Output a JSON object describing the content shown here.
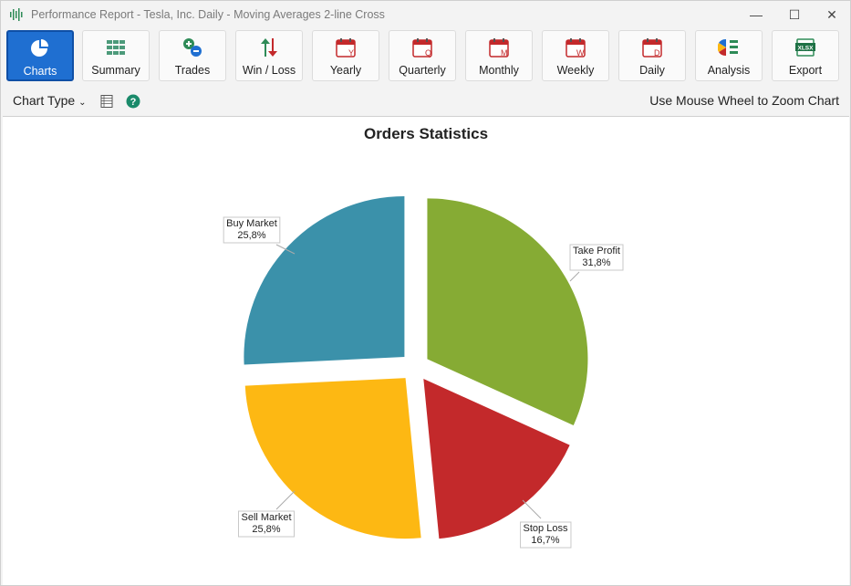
{
  "window": {
    "title": "Performance Report - Tesla, Inc. Daily - Moving Averages 2-line Cross",
    "controls": {
      "minimize": "—",
      "maximize": "☐",
      "close": "✕"
    }
  },
  "toolbar": {
    "buttons": [
      {
        "label": "Charts",
        "icon": "pie-chart-icon",
        "active": true
      },
      {
        "label": "Summary",
        "icon": "grid-icon"
      },
      {
        "label": "Trades",
        "icon": "plus-minus-icon"
      },
      {
        "label": "Win / Loss",
        "icon": "up-down-arrows-icon"
      },
      {
        "label": "Yearly",
        "icon": "calendar-y-icon",
        "letter": "Y"
      },
      {
        "label": "Quarterly",
        "icon": "calendar-q-icon",
        "letter": "Q"
      },
      {
        "label": "Monthly",
        "icon": "calendar-m-icon",
        "letter": "M"
      },
      {
        "label": "Weekly",
        "icon": "calendar-w-icon",
        "letter": "W"
      },
      {
        "label": "Daily",
        "icon": "calendar-d-icon",
        "letter": "D"
      },
      {
        "label": "Analysis",
        "icon": "analysis-icon"
      },
      {
        "label": "Export",
        "icon": "xlsx-icon",
        "badge": "XLSX"
      }
    ]
  },
  "subbar": {
    "chart_type_label": "Chart Type",
    "zoom_hint": "Use Mouse Wheel to Zoom Chart"
  },
  "chart_data": {
    "type": "pie",
    "title": "Orders Statistics",
    "slices": [
      {
        "label": "Take Profit",
        "value": 31.8,
        "display": "31,8%",
        "color": "#86ab34"
      },
      {
        "label": "Stop Loss",
        "value": 16.7,
        "display": "16,7%",
        "color": "#c3292b"
      },
      {
        "label": "Sell Market",
        "value": 25.8,
        "display": "25,8%",
        "color": "#fdb813"
      },
      {
        "label": "Buy Market",
        "value": 25.8,
        "display": "25,8%",
        "color": "#3b91aa"
      }
    ],
    "exploded": true,
    "start_angle_deg": 0,
    "direction": "clockwise"
  }
}
